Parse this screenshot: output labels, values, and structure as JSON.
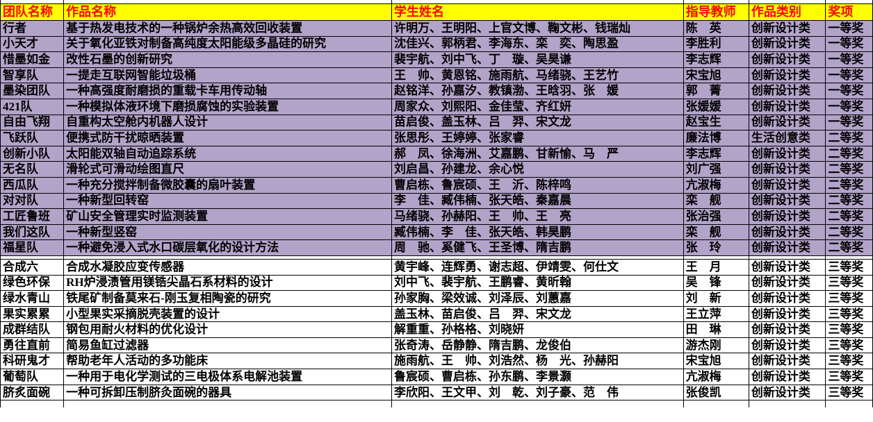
{
  "colors": {
    "header_bg": "#ffff00",
    "header_text": "#ff0000",
    "band_purple": "#b2a3c9",
    "band_white": "#ffffff",
    "grid_line": "#000000",
    "body_text": "#000000"
  },
  "table": {
    "columns": [
      {
        "key": "team",
        "label": "团队名称"
      },
      {
        "key": "work",
        "label": "作品名称"
      },
      {
        "key": "students",
        "label": "学生姓名"
      },
      {
        "key": "teacher",
        "label": "指导教师"
      },
      {
        "key": "category",
        "label": "作品类别"
      },
      {
        "key": "award",
        "label": "奖项"
      }
    ],
    "rows": [
      {
        "band": "purple",
        "team": "行者",
        "work": "基于热发电技术的一种锅炉余热高效回收装置",
        "students": "许明万、王明阳、上官文博、鞠文彬、钱瑞灿",
        "teacher": "陈　英",
        "category": "创新设计类",
        "award": "一等奖"
      },
      {
        "band": "purple",
        "team": "小天才",
        "work": "关于氧化亚铁对制备高纯度太阳能级多晶硅的研究",
        "students": "沈佳兴、郭柄君、李海东、栾　奕、陶思盈",
        "teacher": "李胜利",
        "category": "创新设计类",
        "award": "一等奖"
      },
      {
        "band": "purple",
        "team": "惜墨如金",
        "work": "改性石墨的创新研究",
        "students": "裴宇航、刘中飞、丁　璇、吴昊谦",
        "teacher": "李志辉",
        "category": "创新设计类",
        "award": "一等奖"
      },
      {
        "band": "purple",
        "team": "智享队",
        "work": "一提走互联网智能垃圾桶",
        "students": "王　帅、黄恩铭、施雨航、马绪骁、王艺竹",
        "teacher": "宋宝旭",
        "category": "创新设计类",
        "award": "一等奖"
      },
      {
        "band": "purple",
        "team": "墨染团队",
        "work": "一种高强度耐磨损的重载卡车用传动轴",
        "students": "赵铭洋、孙嘉汐、教镇渤、王晗羽、张　媛",
        "teacher": "郭　菁",
        "category": "创新设计类",
        "award": "一等奖"
      },
      {
        "band": "purple",
        "team": "421队",
        "work": "一种模拟体液环境下磨损腐蚀的实验装置",
        "students": "周家众、刘熙阳、金佳莹、齐红妍",
        "teacher": "张媛媛",
        "category": "创新设计类",
        "award": "一等奖"
      },
      {
        "band": "purple",
        "team": "自由飞翔",
        "work": "自重构太空舱内机器人设计",
        "students": "苗启俊、盖玉林、吕　羿、宋文龙",
        "teacher": "赵宝生",
        "category": "创新设计类",
        "award": "一等奖"
      },
      {
        "band": "purple",
        "team": "飞跃队",
        "work": "便携式防干扰晾晒装置",
        "students": "张思彤、王婷婷、张家睿",
        "teacher": "廉法博",
        "category": "生活创意类",
        "award": "二等奖"
      },
      {
        "band": "purple",
        "team": "创新小队",
        "work": "太阳能双轴自动追踪系统",
        "students": "郝　凤、徐海洲、艾嘉鹏、甘新愉、马　严",
        "teacher": "李志辉",
        "category": "创新设计类",
        "award": "二等奖"
      },
      {
        "band": "purple",
        "team": "无名队",
        "work": "滑轮式可滑动绘图直尺",
        "students": "刘启昌、孙建龙、余心悦",
        "teacher": "刘广强",
        "category": "创新设计类",
        "award": "二等奖"
      },
      {
        "band": "purple",
        "team": "西瓜队",
        "work": "一种充分搅拌制备微胶囊的扇叶装置",
        "students": "曹启栋、鲁宸硕、王　沂、陈梓鸣",
        "teacher": "亢淑梅",
        "category": "创新设计类",
        "award": "二等奖"
      },
      {
        "band": "purple",
        "team": "对对队",
        "work": "一种新型回转窑",
        "students": "李　佳、臧伟楠、张天皓、秦嘉晨",
        "teacher": "栾　舰",
        "category": "创新设计类",
        "award": "二等奖"
      },
      {
        "band": "purple",
        "team": "工匠鲁班",
        "work": "矿山安全管理实时监测装置",
        "students": "马绪骁、孙赫阳、王　帅、王　亮",
        "teacher": "张治强",
        "category": "创新设计类",
        "award": "二等奖"
      },
      {
        "band": "purple",
        "team": "我们这队",
        "work": "一种新型竖窑",
        "students": "臧伟楠、李　佳、张天皓、韩昊鹏",
        "teacher": "栾　舰",
        "category": "创新设计类",
        "award": "二等奖"
      },
      {
        "band": "purple",
        "team": "福星队",
        "work": "一种避免浸入式水口碳层氧化的设计方法",
        "students": "周　驰、奚健飞、王圣博、隋吉鹏",
        "teacher": "张　玲",
        "category": "创新设计类",
        "award": "二等奖"
      },
      {
        "band": "white",
        "team": "合成六",
        "work": "合成水凝胶应变传感器",
        "students": "黄宇峰、连辉勇、谢志超、伊靖雯、何仕文",
        "teacher": "王　月",
        "category": "创新设计类",
        "award": "三等奖"
      },
      {
        "band": "white",
        "team": "绿色环保",
        "work": "RH炉浸渍管用镁锆尖晶石系材料的设计",
        "students": "刘中飞、裴宇航、王鹏睿、黄昕翰",
        "teacher": "吴　锋",
        "category": "创新设计类",
        "award": "三等奖"
      },
      {
        "band": "white",
        "team": "绿水青山",
        "work": "铁尾矿制备莫来石-刚玉复相陶瓷的研究",
        "students": "孙家胸、梁效诚、刘泽辰、刘蕙嘉",
        "teacher": "刘　新",
        "category": "创新设计类",
        "award": "三等奖"
      },
      {
        "band": "white",
        "team": "果实累累",
        "work": "小型果实采摘脱壳装置的设计",
        "students": "盖玉林、苗启俊、吕　羿、宋文龙",
        "teacher": "王立萍",
        "category": "创新设计类",
        "award": "三等奖"
      },
      {
        "band": "white",
        "team": "成群结队",
        "work": "钢包用耐火材料的优化设计",
        "students": "解重重、孙格格、刘晓妍",
        "teacher": "田　琳",
        "category": "创新设计类",
        "award": "三等奖"
      },
      {
        "band": "white",
        "team": "勇往直前",
        "work": "简易鱼缸过滤器",
        "students": "张奇涛、岳静静、隋吉鹏、龙俊伯",
        "teacher": "游杰刚",
        "category": "创新设计类",
        "award": "三等奖"
      },
      {
        "band": "white",
        "team": "科研鬼才",
        "work": "帮助老年人活动的多功能床",
        "students": "施雨航、王　帅、刘浩然、杨　光、孙赫阳",
        "teacher": "宋宝旭",
        "category": "创新设计类",
        "award": "三等奖"
      },
      {
        "band": "white",
        "team": "葡萄队",
        "work": "一种用于电化学测试的三电极体系电解池装置",
        "students": "鲁宸硕、曹启栋、孙东鹏、李景灏",
        "teacher": "亢淑梅",
        "category": "创新设计类",
        "award": "三等奖"
      },
      {
        "band": "white",
        "team": "脐炙面碗",
        "work": "一种可拆卸压制脐灸面碗的器具",
        "students": "李欣阳、王文甲、刘　乾、刘子豪、范　伟",
        "teacher": "张俊凯",
        "category": "创新设计类",
        "award": "三等奖"
      }
    ]
  }
}
